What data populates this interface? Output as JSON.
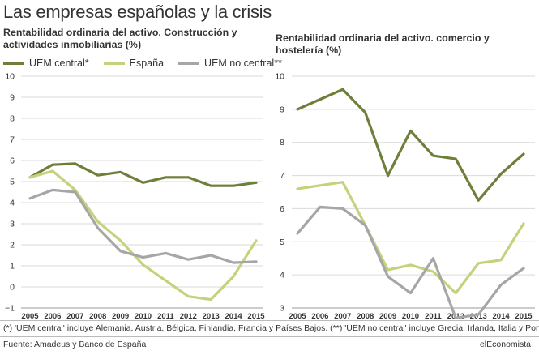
{
  "header": {
    "title": "Las empresas españolas y la crisis",
    "left_subtitle": "Rentabilidad ordinaria del activo. Construcción y actividades inmobiliarias (%)",
    "right_subtitle": "Rentabilidad ordinaria del activo. comercio y hostelería (%)"
  },
  "legend": [
    {
      "label": "UEM central*",
      "color": "#6e7f3a"
    },
    {
      "label": "España",
      "color": "#c4d27c"
    },
    {
      "label": "UEM no central**",
      "color": "#a6a6a6"
    }
  ],
  "footer": {
    "footnote": "(*) 'UEM central' incluye Alemania, Austria, Bélgica, Finlandia, Francia y Países Bajos. (**) 'UEM no central' incluye Grecia, Irlanda, Italia y Portugal.",
    "source": "Fuente: Amadeus y Banco de España",
    "brand": "elEconomista"
  },
  "chart_data": [
    {
      "type": "line",
      "title": "Rentabilidad ordinaria del activo. Construcción y actividades inmobiliarias (%)",
      "x": [
        2005,
        2006,
        2007,
        2008,
        2009,
        2010,
        2011,
        2012,
        2013,
        2014,
        2015
      ],
      "ylim": [
        -1,
        10
      ],
      "yticks": [
        -1,
        0,
        1,
        2,
        3,
        4,
        5,
        6,
        7,
        8,
        9,
        10
      ],
      "grid": true,
      "series": [
        {
          "name": "UEM central*",
          "color": "#6e7f3a",
          "values": [
            5.2,
            5.8,
            5.85,
            5.3,
            5.45,
            4.95,
            5.2,
            5.2,
            4.8,
            4.8,
            4.95
          ]
        },
        {
          "name": "España",
          "color": "#c4d27c",
          "values": [
            5.2,
            5.5,
            4.6,
            3.1,
            2.2,
            1.05,
            0.3,
            -0.45,
            -0.6,
            0.5,
            2.2
          ]
        },
        {
          "name": "UEM no central**",
          "color": "#a6a6a6",
          "values": [
            4.2,
            4.6,
            4.5,
            2.8,
            1.7,
            1.4,
            1.6,
            1.3,
            1.5,
            1.15,
            1.2
          ]
        }
      ]
    },
    {
      "type": "line",
      "title": "Rentabilidad ordinaria del activo. comercio y hostelería (%)",
      "x": [
        2005,
        2006,
        2007,
        2008,
        2009,
        2010,
        2011,
        2012,
        2013,
        2014,
        2015
      ],
      "ylim": [
        3,
        10
      ],
      "yticks": [
        3,
        4,
        5,
        6,
        7,
        8,
        9,
        10
      ],
      "grid": true,
      "series": [
        {
          "name": "UEM central*",
          "color": "#6e7f3a",
          "values": [
            9.0,
            9.3,
            9.6,
            8.9,
            7.0,
            8.35,
            7.6,
            7.5,
            6.25,
            7.05,
            7.65
          ]
        },
        {
          "name": "España",
          "color": "#c4d27c",
          "values": [
            6.6,
            6.7,
            6.8,
            5.5,
            4.15,
            4.3,
            4.1,
            3.45,
            4.35,
            4.45,
            5.55
          ]
        },
        {
          "name": "UEM no central**",
          "color": "#a6a6a6",
          "values": [
            5.25,
            6.05,
            6.0,
            5.5,
            3.95,
            3.45,
            4.5,
            2.7,
            2.8,
            3.7,
            4.2
          ]
        }
      ]
    }
  ]
}
